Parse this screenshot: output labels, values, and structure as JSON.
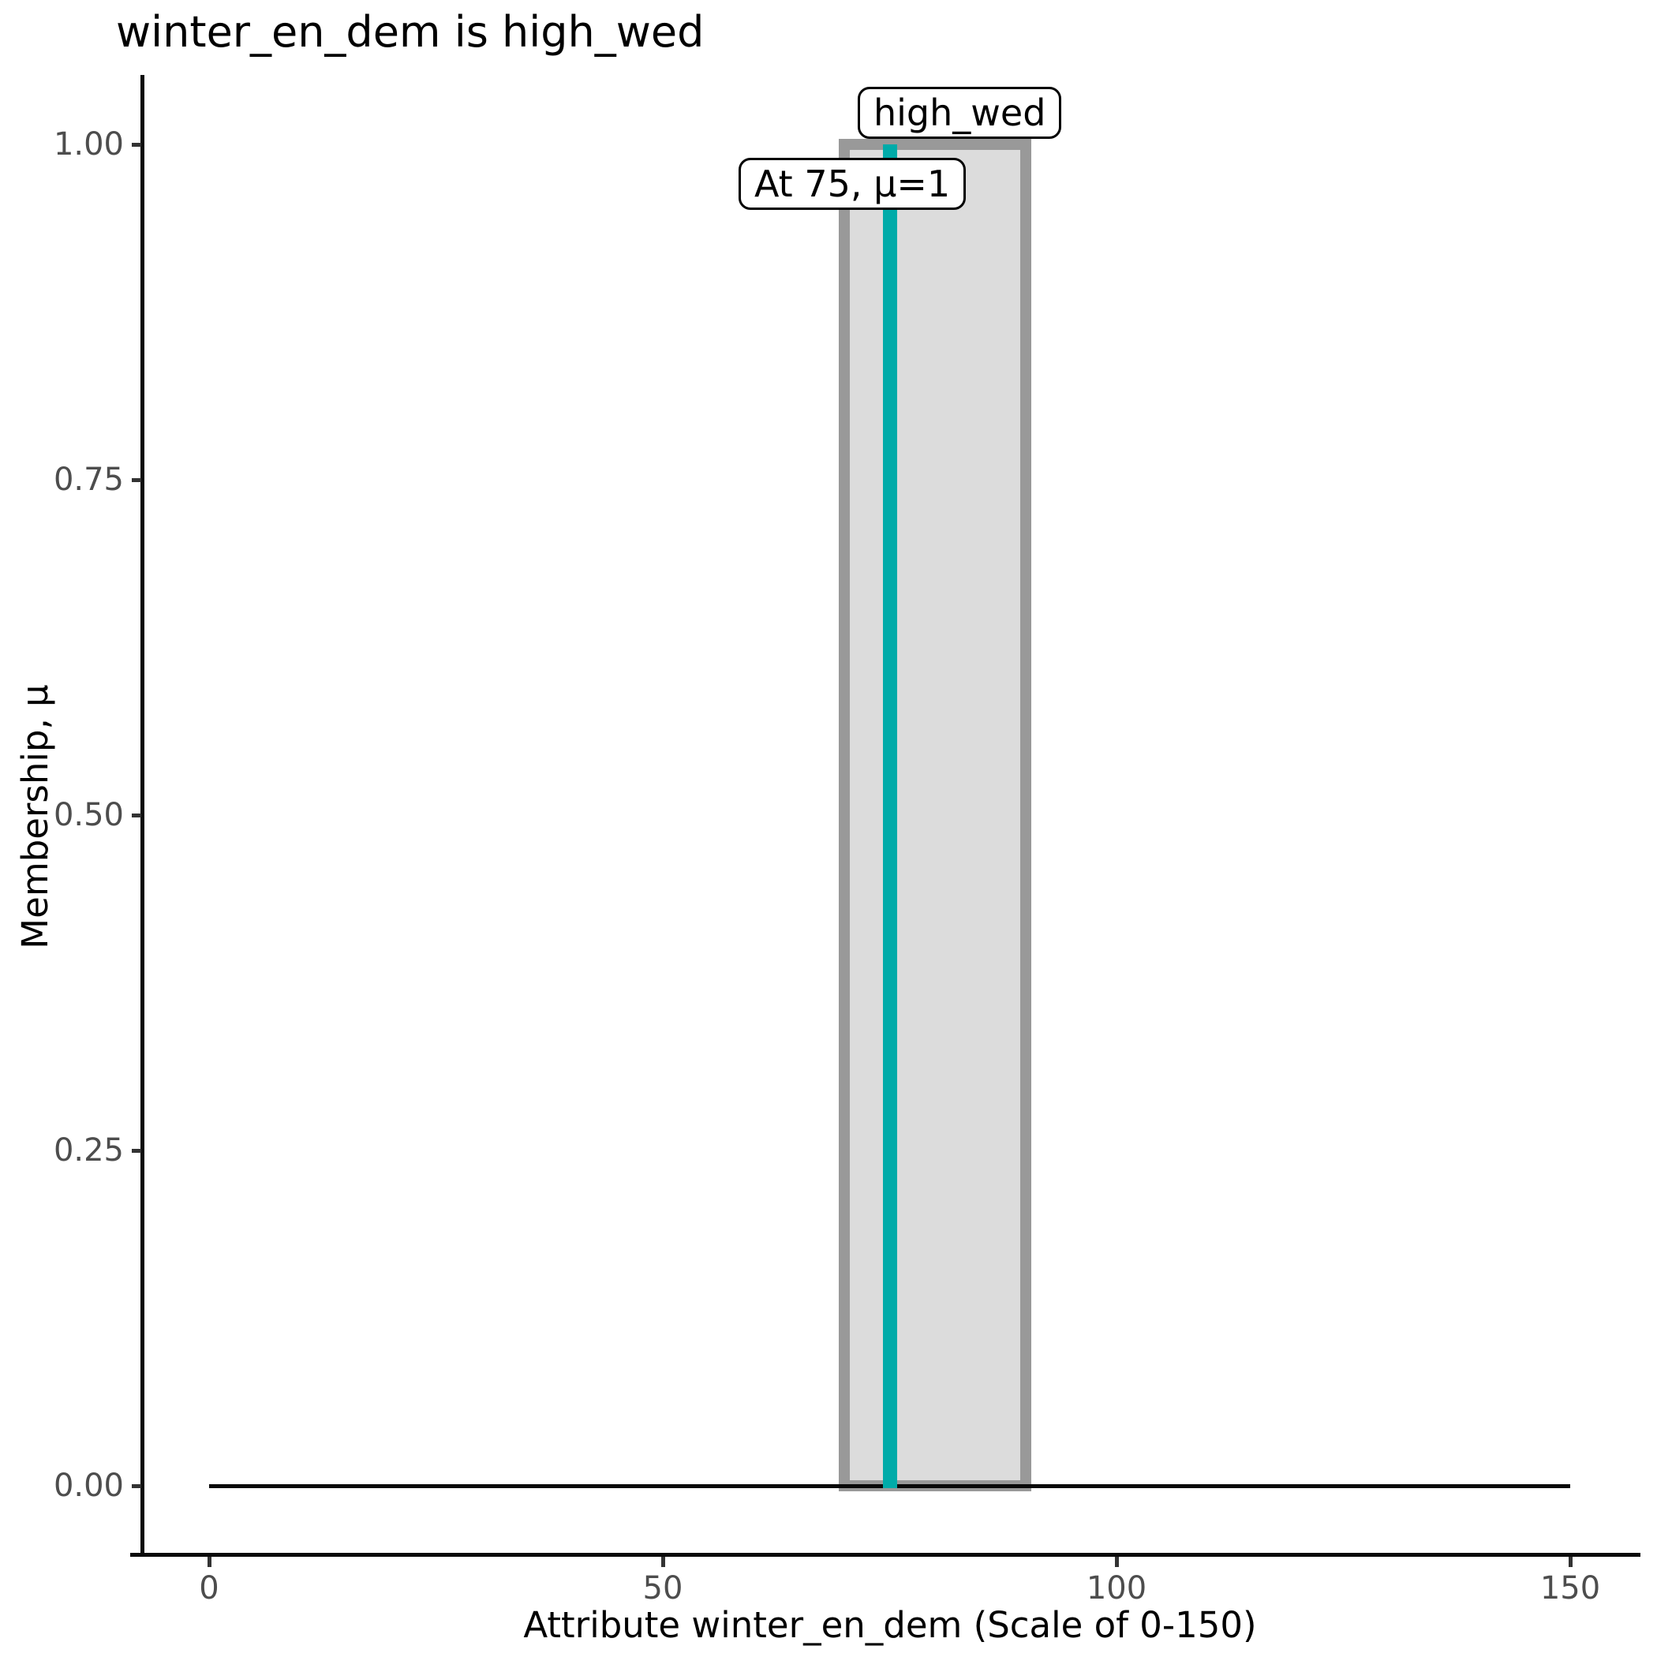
{
  "title": "winter_en_dem is high_wed",
  "colors": {
    "marker_line": "#00ABA9",
    "mf_fill": "#DCDCDC",
    "mf_stroke": "#999999",
    "axis_line": "#0a0a0a",
    "tick_label": "#4D4D4D",
    "text": "#000000",
    "background": "#ffffff"
  },
  "annotations": {
    "set_label": "high_wed",
    "marker_label": "At 75, μ=1"
  },
  "chart_data": {
    "type": "line",
    "title": "winter_en_dem is high_wed",
    "xlabel": "Attribute winter_en_dem (Scale of 0-150)",
    "ylabel": "Membership, μ",
    "xlim": [
      0,
      150
    ],
    "ylim": [
      0,
      1
    ],
    "grid": false,
    "legend_position": "none",
    "x_ticks": {
      "values": [
        0,
        50,
        100,
        150
      ],
      "labels": [
        "0",
        "50",
        "100",
        "150"
      ]
    },
    "y_ticks": {
      "values": [
        0,
        0.25,
        0.5,
        0.75,
        1
      ],
      "labels": [
        "0.00",
        "0.25",
        "0.50",
        "0.75",
        "1.00"
      ]
    },
    "membership_function": {
      "name": "high_wed",
      "shape": "rectangle",
      "x_range": [
        70,
        90
      ],
      "mu": 1
    },
    "baseline": {
      "x_range": [
        0,
        150
      ],
      "mu": 0
    },
    "marker": {
      "x": 75,
      "mu": 1,
      "label": "At 75, μ=1"
    },
    "series": [
      {
        "name": "high_wed",
        "points": [
          [
            0,
            0
          ],
          [
            70,
            0
          ],
          [
            70,
            1
          ],
          [
            90,
            1
          ],
          [
            90,
            0
          ],
          [
            150,
            0
          ]
        ]
      }
    ]
  }
}
